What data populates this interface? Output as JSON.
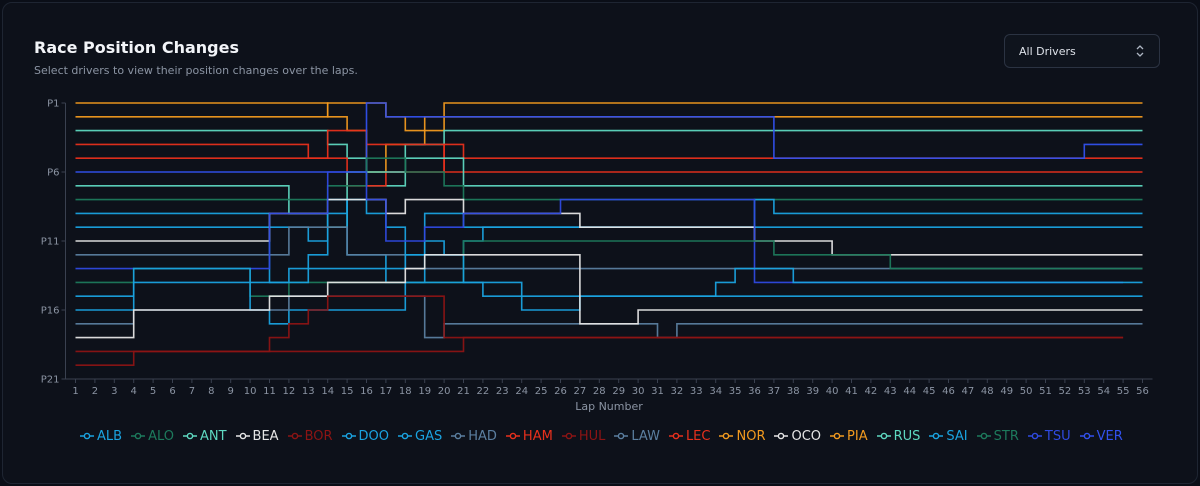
{
  "header": {
    "title": "Race Position Changes",
    "subtitle": "Select drivers to view their position changes over the laps."
  },
  "driver_select": {
    "value": "All Drivers"
  },
  "chart_data": {
    "type": "line",
    "title": "Race Position Changes",
    "xlabel": "Lap Number",
    "ylabel": "",
    "x": [
      1,
      2,
      3,
      4,
      5,
      6,
      7,
      8,
      9,
      10,
      11,
      12,
      13,
      14,
      15,
      16,
      17,
      18,
      19,
      20,
      21,
      22,
      23,
      24,
      25,
      26,
      27,
      28,
      29,
      30,
      31,
      32,
      33,
      34,
      35,
      36,
      37,
      38,
      39,
      40,
      41,
      42,
      43,
      44,
      45,
      46,
      47,
      48,
      49,
      50,
      51,
      52,
      53,
      54,
      55,
      56
    ],
    "xlim": [
      1,
      56
    ],
    "ylim": [
      1,
      21
    ],
    "y_inverted": true,
    "y_ticks": [
      1,
      6,
      11,
      16,
      21
    ],
    "y_tick_labels": [
      "P1",
      "P6",
      "P11",
      "P16",
      "P21"
    ],
    "line_style": "step",
    "grid": false,
    "legend_position": "bottom",
    "series": [
      {
        "name": "NOR",
        "color": "#f29a1f",
        "changes": [
          [
            1,
            1
          ],
          [
            14,
            2
          ],
          [
            15,
            3
          ],
          [
            16,
            6
          ],
          [
            17,
            4
          ],
          [
            19,
            3
          ],
          [
            20,
            1
          ]
        ]
      },
      {
        "name": "PIA",
        "color": "#f29a1f",
        "changes": [
          [
            1,
            2
          ],
          [
            14,
            1
          ],
          [
            17,
            2
          ],
          [
            18,
            3
          ],
          [
            19,
            2
          ]
        ]
      },
      {
        "name": "RUS",
        "color": "#5ed8c0",
        "changes": [
          [
            1,
            3
          ],
          [
            14,
            4
          ],
          [
            15,
            5
          ],
          [
            16,
            7
          ],
          [
            18,
            4
          ],
          [
            20,
            3
          ]
        ]
      },
      {
        "name": "LEC",
        "color": "#e8301c",
        "changes": [
          [
            1,
            4
          ],
          [
            13,
            5
          ],
          [
            15,
            7
          ],
          [
            17,
            6
          ],
          [
            20,
            4
          ],
          [
            21,
            5
          ]
        ]
      },
      {
        "name": "HAM",
        "color": "#e8301c",
        "changes": [
          [
            1,
            5
          ],
          [
            14,
            3
          ],
          [
            16,
            4
          ],
          [
            20,
            6
          ]
        ]
      },
      {
        "name": "VER",
        "color": "#3251ee",
        "changes": [
          [
            1,
            6
          ],
          [
            16,
            1
          ],
          [
            17,
            2
          ],
          [
            37,
            5
          ],
          [
            53,
            4
          ]
        ]
      },
      {
        "name": "ANT",
        "color": "#5ed8c0",
        "changes": [
          [
            1,
            7
          ],
          [
            12,
            9
          ],
          [
            14,
            10
          ],
          [
            15,
            6
          ],
          [
            18,
            5
          ],
          [
            21,
            7
          ]
        ]
      },
      {
        "name": "STR",
        "color": "#1d7a5c",
        "changes": [
          [
            1,
            8
          ],
          [
            12,
            8
          ],
          [
            14,
            7
          ],
          [
            16,
            5
          ],
          [
            18,
            6
          ],
          [
            20,
            7
          ],
          [
            21,
            8
          ],
          [
            36,
            8
          ]
        ]
      },
      {
        "name": "ALB",
        "color": "#1aa3e0",
        "changes": [
          [
            1,
            9
          ],
          [
            11,
            10
          ],
          [
            13,
            11
          ],
          [
            14,
            9
          ],
          [
            15,
            8
          ],
          [
            16,
            9
          ],
          [
            17,
            10
          ],
          [
            18,
            12
          ],
          [
            19,
            9
          ],
          [
            21,
            10
          ],
          [
            36,
            8
          ],
          [
            37,
            9
          ]
        ]
      },
      {
        "name": "GAS",
        "color": "#1aa3e0",
        "changes": [
          [
            1,
            10
          ],
          [
            11,
            14
          ],
          [
            12,
            13
          ],
          [
            13,
            12
          ],
          [
            14,
            8
          ],
          [
            15,
            12
          ],
          [
            17,
            14
          ],
          [
            19,
            11
          ],
          [
            20,
            12
          ],
          [
            21,
            11
          ],
          [
            22,
            10
          ],
          [
            37,
            10
          ]
        ]
      },
      {
        "name": "OCO",
        "color": "#e6e6e6",
        "changes": [
          [
            1,
            11
          ],
          [
            11,
            9
          ],
          [
            14,
            8
          ],
          [
            17,
            9
          ],
          [
            18,
            8
          ],
          [
            21,
            9
          ],
          [
            27,
            10
          ],
          [
            36,
            11
          ],
          [
            40,
            12
          ]
        ]
      },
      {
        "name": "HAD",
        "color": "#5b7fa0",
        "changes": [
          [
            1,
            12
          ],
          [
            12,
            10
          ],
          [
            15,
            12
          ],
          [
            18,
            13
          ],
          [
            20,
            13
          ]
        ]
      },
      {
        "name": "TSU",
        "color": "#2f4ae0",
        "changes": [
          [
            1,
            13
          ],
          [
            11,
            9
          ],
          [
            14,
            6
          ],
          [
            16,
            8
          ],
          [
            17,
            11
          ],
          [
            19,
            10
          ],
          [
            21,
            9
          ],
          [
            26,
            8
          ],
          [
            35,
            8
          ],
          [
            36,
            14
          ]
        ]
      },
      {
        "name": "ALO",
        "color": "#1d7a5c",
        "changes": [
          [
            1,
            14
          ],
          [
            4,
            13
          ],
          [
            10,
            15
          ],
          [
            12,
            14
          ],
          [
            16,
            14
          ],
          [
            21,
            11
          ],
          [
            37,
            12
          ],
          [
            43,
            13
          ]
        ]
      },
      {
        "name": "DOO",
        "color": "#1aa3e0",
        "changes": [
          [
            1,
            15
          ],
          [
            4,
            14
          ],
          [
            13,
            13
          ],
          [
            18,
            12
          ],
          [
            21,
            14
          ],
          [
            22,
            15
          ],
          [
            36,
            15
          ],
          [
            39,
            15
          ]
        ]
      },
      {
        "name": "SAI",
        "color": "#1aa3e0",
        "changes": [
          [
            1,
            16
          ],
          [
            4,
            13
          ],
          [
            10,
            16
          ],
          [
            11,
            17
          ],
          [
            12,
            16
          ],
          [
            18,
            14
          ],
          [
            24,
            16
          ],
          [
            27,
            15
          ],
          [
            34,
            14
          ],
          [
            35,
            13
          ],
          [
            38,
            14
          ]
        ]
      },
      {
        "name": "LAW",
        "color": "#5b7fa0",
        "changes": [
          [
            1,
            17
          ],
          [
            4,
            16
          ],
          [
            12,
            15
          ],
          [
            19,
            18
          ],
          [
            20,
            17
          ],
          [
            31,
            18
          ],
          [
            32,
            17
          ]
        ]
      },
      {
        "name": "BEA",
        "color": "#e6e6e6",
        "changes": [
          [
            1,
            18
          ],
          [
            4,
            16
          ],
          [
            11,
            15
          ],
          [
            14,
            14
          ],
          [
            18,
            13
          ],
          [
            19,
            12
          ],
          [
            27,
            17
          ],
          [
            30,
            16
          ]
        ]
      },
      {
        "name": "HUL",
        "color": "#8c1414",
        "changes": [
          [
            1,
            19
          ],
          [
            4,
            19
          ],
          [
            11,
            18
          ],
          [
            12,
            17
          ],
          [
            13,
            16
          ],
          [
            14,
            15
          ],
          [
            19,
            15
          ],
          [
            20,
            18
          ],
          [
            45,
            18
          ],
          [
            46,
            18
          ]
        ]
      },
      {
        "name": "BOR",
        "color": "#8c1414",
        "changes": [
          [
            1,
            20
          ],
          [
            4,
            19
          ],
          [
            21,
            18
          ],
          [
            27,
            18
          ]
        ]
      }
    ],
    "legend": [
      "ALB",
      "ALO",
      "ANT",
      "BEA",
      "BOR",
      "DOO",
      "GAS",
      "HAD",
      "HAM",
      "HUL",
      "LAW",
      "LEC",
      "NOR",
      "OCO",
      "PIA",
      "RUS",
      "SAI",
      "STR",
      "TSU",
      "VER"
    ]
  }
}
